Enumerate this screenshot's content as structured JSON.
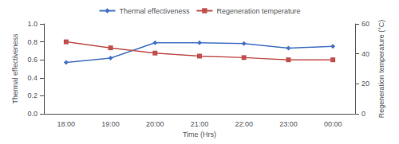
{
  "chart_data": {
    "type": "line",
    "xlabel": "Time (Hrs)",
    "ylabel": "Thermal effectiveness",
    "y2label": "Regeneration temperature (°C)",
    "categories": [
      "18:00",
      "19:00",
      "20:00",
      "21:00",
      "22:00",
      "23:00",
      "00:00"
    ],
    "series": [
      {
        "name": "Thermal effectiveness",
        "color": "#4472C4",
        "marker": "diamond",
        "values": [
          0.57,
          0.62,
          0.79,
          0.79,
          0.78,
          0.73,
          0.75
        ]
      },
      {
        "name": "Regeneration temperature",
        "color": "#C0504D",
        "marker": "square",
        "axis": "y2",
        "values": [
          48.0,
          44.0,
          40.5,
          38.5,
          37.5,
          36.0,
          36.0
        ]
      }
    ],
    "ylim": [
      0,
      1.0
    ],
    "yticks": [
      {
        "value": 0,
        "label": "0.0"
      },
      0.2,
      0.4,
      0.6,
      0.8,
      {
        "value": 1.0,
        "label": "1.0"
      }
    ],
    "y2lim": [
      0,
      60
    ],
    "y2ticks": [
      0,
      20,
      40,
      60
    ],
    "grid": false,
    "legend": "upper center"
  }
}
